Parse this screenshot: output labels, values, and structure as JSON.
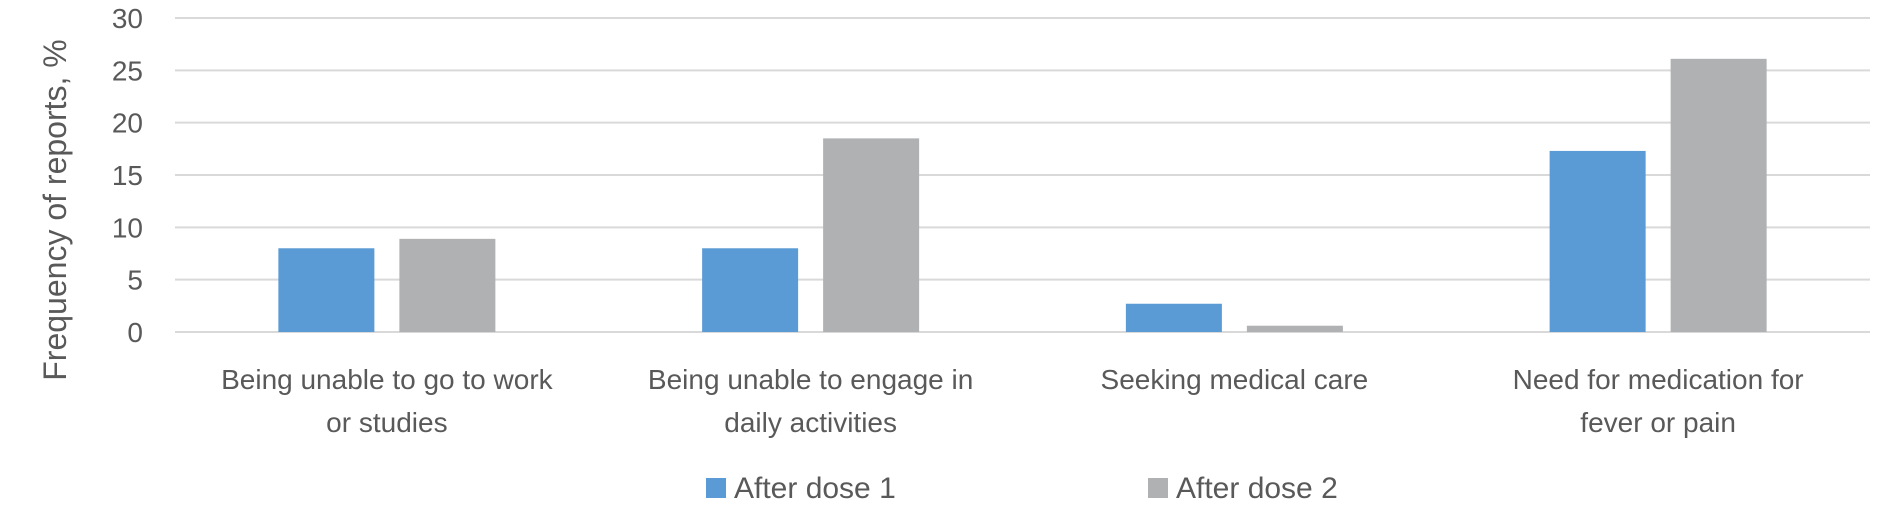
{
  "chart_data": {
    "type": "bar",
    "categories": [
      [
        "Being unable to go to work",
        "or studies"
      ],
      [
        "Being unable to engage in",
        "daily activities"
      ],
      [
        "Seeking medical care"
      ],
      [
        "Need for medication for",
        "fever or pain"
      ]
    ],
    "series": [
      {
        "name": "After dose 1",
        "color": "#5b9bd5",
        "values": [
          8.0,
          8.0,
          2.7,
          17.3
        ]
      },
      {
        "name": "After dose 2",
        "color": "#b0b1b3",
        "values": [
          8.9,
          18.5,
          0.6,
          26.1
        ]
      }
    ],
    "title": "",
    "xlabel": "",
    "ylabel": "Frequency of reports, %",
    "ylim": [
      0,
      30
    ],
    "yticks": [
      0,
      5,
      10,
      15,
      20,
      25,
      30
    ],
    "grid": true,
    "legend_position": "bottom"
  }
}
